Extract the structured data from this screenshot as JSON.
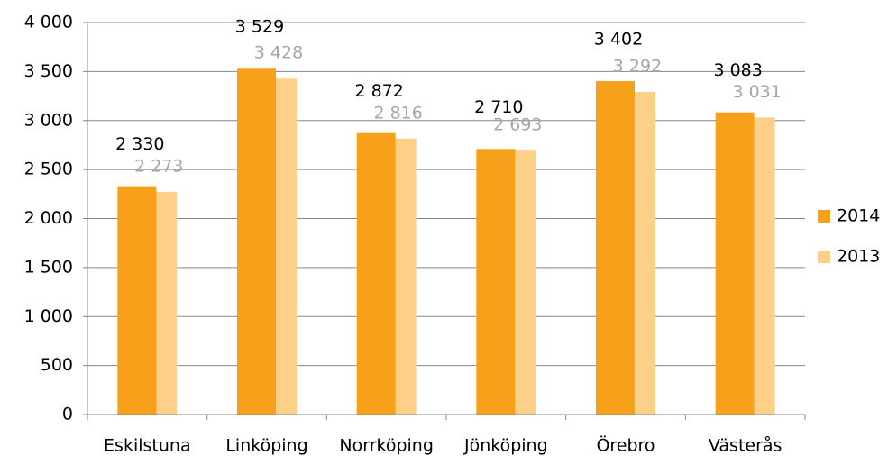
{
  "chart_data": {
    "type": "bar",
    "categories": [
      "Eskilstuna",
      "Linköping",
      "Norrköping",
      "Jönköping",
      "Örebro",
      "Västerås"
    ],
    "series": [
      {
        "name": "2014",
        "color": "#f7a11a",
        "values": [
          2330,
          3529,
          2872,
          2710,
          3402,
          3083
        ],
        "value_labels": [
          "2 330",
          "3 529",
          "2 872",
          "2 710",
          "3 402",
          "3 083"
        ]
      },
      {
        "name": "2013",
        "color": "#fdd089",
        "values": [
          2273,
          3428,
          2816,
          2693,
          3292,
          3031
        ],
        "value_labels": [
          "2 273",
          "3 428",
          "2 816",
          "2 693",
          "3 292",
          "3 031"
        ]
      }
    ],
    "ylim": [
      0,
      4000
    ],
    "yticks": [
      0,
      500,
      {
        "value": 1000,
        "label": "1 000"
      },
      {
        "value": 1500,
        "label": "1 500"
      },
      {
        "value": 2000,
        "label": "2 000"
      },
      {
        "value": 2500,
        "label": "2 500"
      },
      {
        "value": 3000,
        "label": "3 000"
      },
      {
        "value": 3500,
        "label": "3 500"
      },
      {
        "value": 4000,
        "label": "4 000"
      }
    ],
    "grid": true,
    "legend": "right"
  }
}
